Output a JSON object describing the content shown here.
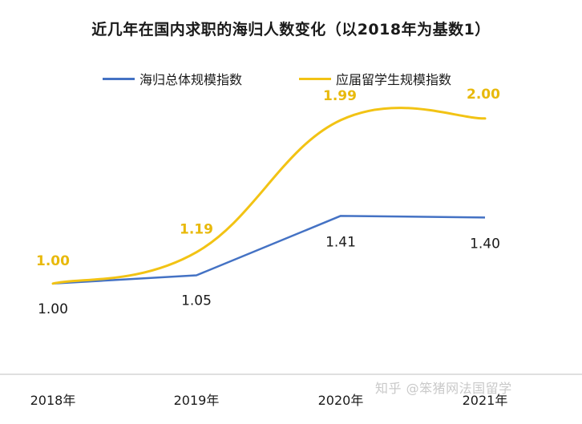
{
  "chart_data": {
    "type": "line",
    "title": "近几年在国内求职的海归人数变化（以2018年为基数1）",
    "categories": [
      "2018年",
      "2019年",
      "2020年",
      "2021年"
    ],
    "series": [
      {
        "name": "海归总体规模指数",
        "color": "#4472c4",
        "values": [
          1.0,
          1.05,
          1.41,
          1.4
        ],
        "labels": [
          "1.00",
          "1.05",
          "1.41",
          "1.40"
        ]
      },
      {
        "name": "应届留学生规模指数",
        "color": "#f2c314",
        "values": [
          1.0,
          1.19,
          1.99,
          2.0
        ],
        "labels": [
          "1.00",
          "1.19",
          "1.99",
          "2.00"
        ]
      }
    ],
    "legend_position": "top",
    "grid": false,
    "ylim": [
      0.8,
      2.1
    ]
  },
  "watermark": "知乎 @笨猪网法国留学"
}
